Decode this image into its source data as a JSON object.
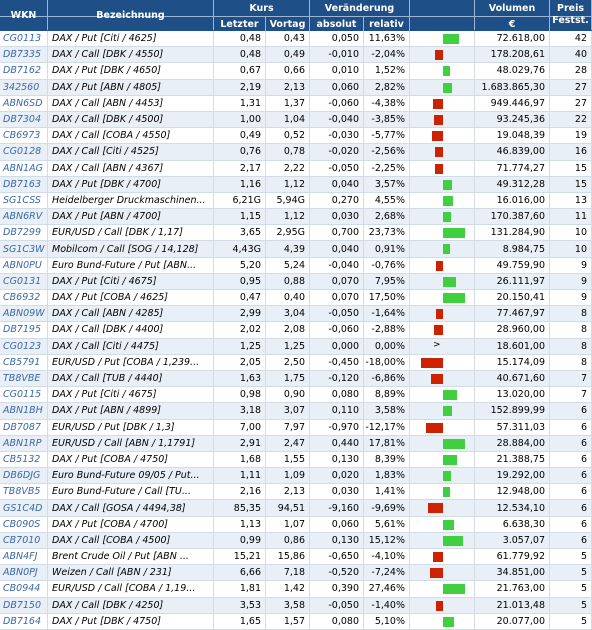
{
  "header": {
    "wkn": "WKN",
    "bezeichnung": "Bezeichnung",
    "kurs": "Kurs",
    "letzter": "Letzter",
    "vortag": "Vortag",
    "veraenderung": "Veränderung",
    "absolut": "absolut",
    "relativ": "relativ",
    "volumen": "Volumen",
    "currency": "€",
    "preis": "Preis",
    "festst": "Festst."
  },
  "colors": {
    "header_bg": "#1e4f86",
    "positive": "#3fcf3f",
    "negative": "#cc2200",
    "wkn_link": "#3a67a8"
  },
  "rows": [
    {
      "wkn": "CG0113",
      "name": "DAX / Put [Citi / 4625]",
      "letzter": "0,48",
      "vortag": "0,43",
      "absolut": "0,050",
      "relativ": "11,63%",
      "change_pct": 11.63,
      "volumen": "72.618,00",
      "preis": "42"
    },
    {
      "wkn": "DB7335",
      "name": "DAX / Call [DBK / 4550]",
      "letzter": "0,48",
      "vortag": "0,49",
      "absolut": "-0,010",
      "relativ": "-2,04%",
      "change_pct": -2.04,
      "volumen": "178.208,61",
      "preis": "40"
    },
    {
      "wkn": "DB7162",
      "name": "DAX / Put [DBK / 4650]",
      "letzter": "0,67",
      "vortag": "0,66",
      "absolut": "0,010",
      "relativ": "1,52%",
      "change_pct": 1.52,
      "volumen": "48.029,76",
      "preis": "28"
    },
    {
      "wkn": "342560",
      "name": "DAX / Put [ABN / 4805]",
      "letzter": "2,19",
      "vortag": "2,13",
      "absolut": "0,060",
      "relativ": "2,82%",
      "change_pct": 2.82,
      "volumen": "1.683.865,30",
      "preis": "27"
    },
    {
      "wkn": "ABN6SD",
      "name": "DAX / Call [ABN / 4453]",
      "letzter": "1,31",
      "vortag": "1,37",
      "absolut": "-0,060",
      "relativ": "-4,38%",
      "change_pct": -4.38,
      "volumen": "949.446,97",
      "preis": "27"
    },
    {
      "wkn": "DB7304",
      "name": "DAX / Call [DBK / 4500]",
      "letzter": "1,00",
      "vortag": "1,04",
      "absolut": "-0,040",
      "relativ": "-3,85%",
      "change_pct": -3.85,
      "volumen": "93.245,36",
      "preis": "22"
    },
    {
      "wkn": "CB6973",
      "name": "DAX / Call [COBA / 4550]",
      "letzter": "0,49",
      "vortag": "0,52",
      "absolut": "-0,030",
      "relativ": "-5,77%",
      "change_pct": -5.77,
      "volumen": "19.048,39",
      "preis": "19"
    },
    {
      "wkn": "CG0128",
      "name": "DAX / Call [Citi / 4525]",
      "letzter": "0,76",
      "vortag": "0,78",
      "absolut": "-0,020",
      "relativ": "-2,56%",
      "change_pct": -2.56,
      "volumen": "46.839,00",
      "preis": "16"
    },
    {
      "wkn": "ABN1AG",
      "name": "DAX / Call [ABN / 4367]",
      "letzter": "2,17",
      "vortag": "2,22",
      "absolut": "-0,050",
      "relativ": "-2,25%",
      "change_pct": -2.25,
      "volumen": "71.774,27",
      "preis": "15"
    },
    {
      "wkn": "DB7163",
      "name": "DAX / Put [DBK / 4700]",
      "letzter": "1,16",
      "vortag": "1,12",
      "absolut": "0,040",
      "relativ": "3,57%",
      "change_pct": 3.57,
      "volumen": "49.312,28",
      "preis": "15"
    },
    {
      "wkn": "SG1CSS",
      "name": "Heidelberger Druckmaschinen...",
      "letzter": "6,21G",
      "vortag": "5,94G",
      "absolut": "0,270",
      "relativ": "4,55%",
      "change_pct": 4.55,
      "volumen": "16.016,00",
      "preis": "13"
    },
    {
      "wkn": "ABN6RV",
      "name": "DAX / Put [ABN / 4700]",
      "letzter": "1,15",
      "vortag": "1,12",
      "absolut": "0,030",
      "relativ": "2,68%",
      "change_pct": 2.68,
      "volumen": "170.387,60",
      "preis": "11"
    },
    {
      "wkn": "DB7299",
      "name": "EUR/USD / Call [DBK / 1,17]",
      "letzter": "3,65",
      "vortag": "2,95G",
      "absolut": "0,700",
      "relativ": "23,73%",
      "change_pct": 23.73,
      "volumen": "131.284,90",
      "preis": "10"
    },
    {
      "wkn": "SG1C3W",
      "name": "Mobilcom / Call [SOG / 14,128]",
      "letzter": "4,43G",
      "vortag": "4,39",
      "absolut": "0,040",
      "relativ": "0,91%",
      "change_pct": 0.91,
      "volumen": "8.984,75",
      "preis": "10"
    },
    {
      "wkn": "ABN0PU",
      "name": "Euro Bund-Future / Put [ABN...",
      "letzter": "5,20",
      "vortag": "5,24",
      "absolut": "-0,040",
      "relativ": "-0,76%",
      "change_pct": -0.76,
      "volumen": "49.759,90",
      "preis": "9"
    },
    {
      "wkn": "CG0131",
      "name": "DAX / Put [Citi / 4675]",
      "letzter": "0,95",
      "vortag": "0,88",
      "absolut": "0,070",
      "relativ": "7,95%",
      "change_pct": 7.95,
      "volumen": "26.111,97",
      "preis": "9"
    },
    {
      "wkn": "CB6932",
      "name": "DAX / Put [COBA / 4625]",
      "letzter": "0,47",
      "vortag": "0,40",
      "absolut": "0,070",
      "relativ": "17,50%",
      "change_pct": 17.5,
      "volumen": "20.150,41",
      "preis": "9"
    },
    {
      "wkn": "ABN09W",
      "name": "DAX / Call [ABN / 4285]",
      "letzter": "2,99",
      "vortag": "3,04",
      "absolut": "-0,050",
      "relativ": "-1,64%",
      "change_pct": -1.64,
      "volumen": "77.467,97",
      "preis": "8"
    },
    {
      "wkn": "DB7195",
      "name": "DAX / Call [DBK / 4400]",
      "letzter": "2,02",
      "vortag": "2,08",
      "absolut": "-0,060",
      "relativ": "-2,88%",
      "change_pct": -2.88,
      "volumen": "28.960,00",
      "preis": "8"
    },
    {
      "wkn": "CG0123",
      "name": "DAX / Call [Citi / 4475]",
      "letzter": "1,25",
      "vortag": "1,25",
      "absolut": "0,000",
      "relativ": "0,00%",
      "change_pct": 0,
      "volumen": "18.601,00",
      "preis": "8"
    },
    {
      "wkn": "CB5791",
      "name": "EUR/USD / Put [COBA / 1,239...",
      "letzter": "2,05",
      "vortag": "2,50",
      "absolut": "-0,450",
      "relativ": "-18,00%",
      "change_pct": -18,
      "volumen": "15.174,09",
      "preis": "8"
    },
    {
      "wkn": "TB8VBE",
      "name": "DAX / Call [TUB / 4440]",
      "letzter": "1,63",
      "vortag": "1,75",
      "absolut": "-0,120",
      "relativ": "-6,86%",
      "change_pct": -6.86,
      "volumen": "40.671,60",
      "preis": "7"
    },
    {
      "wkn": "CG0115",
      "name": "DAX / Put [Citi / 4675]",
      "letzter": "0,98",
      "vortag": "0,90",
      "absolut": "0,080",
      "relativ": "8,89%",
      "change_pct": 8.89,
      "volumen": "13.020,00",
      "preis": "7"
    },
    {
      "wkn": "ABN1BH",
      "name": "DAX / Put [ABN / 4899]",
      "letzter": "3,18",
      "vortag": "3,07",
      "absolut": "0,110",
      "relativ": "3,58%",
      "change_pct": 3.58,
      "volumen": "152.899,99",
      "preis": "6"
    },
    {
      "wkn": "DB7087",
      "name": "EUR/USD / Put [DBK / 1,3]",
      "letzter": "7,00",
      "vortag": "7,97",
      "absolut": "-0,970",
      "relativ": "-12,17%",
      "change_pct": -12.17,
      "volumen": "57.311,03",
      "preis": "6"
    },
    {
      "wkn": "ABN1RP",
      "name": "EUR/USD / Call [ABN / 1,1791]",
      "letzter": "2,91",
      "vortag": "2,47",
      "absolut": "0,440",
      "relativ": "17,81%",
      "change_pct": 17.81,
      "volumen": "28.884,00",
      "preis": "6"
    },
    {
      "wkn": "CB5132",
      "name": "DAX / Put [COBA / 4750]",
      "letzter": "1,68",
      "vortag": "1,55",
      "absolut": "0,130",
      "relativ": "8,39%",
      "change_pct": 8.39,
      "volumen": "21.388,75",
      "preis": "6"
    },
    {
      "wkn": "DB6DJG",
      "name": "Euro Bund-Future 09/05 / Put...",
      "letzter": "1,11",
      "vortag": "1,09",
      "absolut": "0,020",
      "relativ": "1,83%",
      "change_pct": 1.83,
      "volumen": "19.292,00",
      "preis": "6"
    },
    {
      "wkn": "TB8VB5",
      "name": "Euro Bund-Future / Call [TU...",
      "letzter": "2,16",
      "vortag": "2,13",
      "absolut": "0,030",
      "relativ": "1,41%",
      "change_pct": 1.41,
      "volumen": "12.948,00",
      "preis": "6"
    },
    {
      "wkn": "GS1C4D",
      "name": "DAX / Call [GOSA / 4494,38]",
      "letzter": "85,35",
      "vortag": "94,51",
      "absolut": "-9,160",
      "relativ": "-9,69%",
      "change_pct": -9.69,
      "volumen": "12.534,10",
      "preis": "6"
    },
    {
      "wkn": "CB090S",
      "name": "DAX / Put [COBA / 4700]",
      "letzter": "1,13",
      "vortag": "1,07",
      "absolut": "0,060",
      "relativ": "5,61%",
      "change_pct": 5.61,
      "volumen": "6.638,30",
      "preis": "6"
    },
    {
      "wkn": "CB7010",
      "name": "DAX / Call [COBA / 4500]",
      "letzter": "0,99",
      "vortag": "0,86",
      "absolut": "0,130",
      "relativ": "15,12%",
      "change_pct": 15.12,
      "volumen": "3.057,07",
      "preis": "6"
    },
    {
      "wkn": "ABN4FJ",
      "name": "Brent Crude Oil / Put [ABN ...",
      "letzter": "15,21",
      "vortag": "15,86",
      "absolut": "-0,650",
      "relativ": "-4,10%",
      "change_pct": -4.1,
      "volumen": "61.779,92",
      "preis": "5"
    },
    {
      "wkn": "ABN0PJ",
      "name": "Weizen / Call [ABN / 231]",
      "letzter": "6,66",
      "vortag": "7,18",
      "absolut": "-0,520",
      "relativ": "-7,24%",
      "change_pct": -7.24,
      "volumen": "34.851,00",
      "preis": "5"
    },
    {
      "wkn": "CB0944",
      "name": "EUR/USD / Call [COBA / 1,19...",
      "letzter": "1,81",
      "vortag": "1,42",
      "absolut": "0,390",
      "relativ": "27,46%",
      "change_pct": 27.46,
      "volumen": "21.763,00",
      "preis": "5"
    },
    {
      "wkn": "DB7150",
      "name": "DAX / Call [DBK / 4250]",
      "letzter": "3,53",
      "vortag": "3,58",
      "absolut": "-0,050",
      "relativ": "-1,40%",
      "change_pct": -1.4,
      "volumen": "21.013,48",
      "preis": "5"
    },
    {
      "wkn": "DB7164",
      "name": "DAX / Put [DBK / 4750]",
      "letzter": "1,65",
      "vortag": "1,57",
      "absolut": "0,080",
      "relativ": "5,10%",
      "change_pct": 5.1,
      "volumen": "20.077,00",
      "preis": "5"
    }
  ]
}
